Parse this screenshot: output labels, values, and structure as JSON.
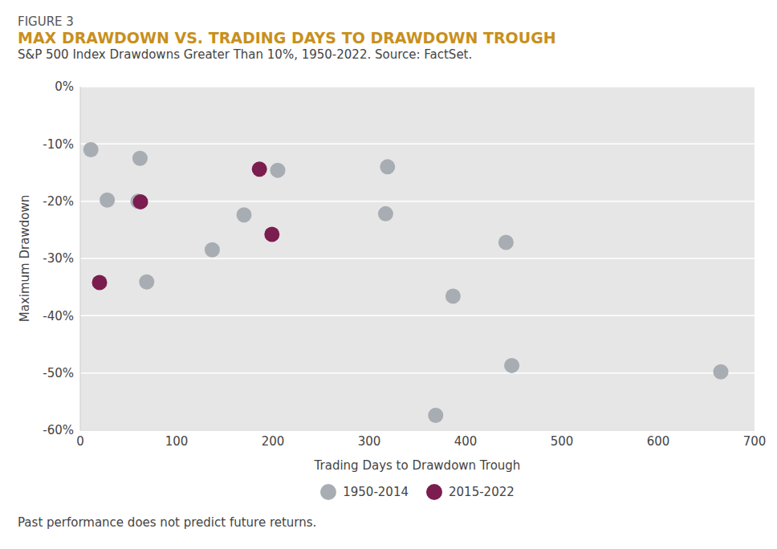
{
  "chart_data": {
    "type": "scatter",
    "figure_label": "FIGURE 3",
    "title": "MAX DRAWDOWN VS. TRADING DAYS TO DRAWDOWN TROUGH",
    "subtitle": "S&P 500 Index Drawdowns Greater Than 10%, 1950-2022. Source: FactSet.",
    "x_label": "Trading Days to Drawdown Trough",
    "y_label": "Maximum Drawdown",
    "footnote": "Past performance does not predict future returns.",
    "series": [
      {
        "name": "1950-2014",
        "color": "#a7adb2",
        "x": [
          11,
          62,
          28,
          60,
          69,
          137,
          170,
          205,
          319,
          317,
          442,
          387,
          369,
          448,
          665
        ],
        "values": [
          -11,
          -12.5,
          -19.8,
          -20,
          -34.1,
          -28.5,
          -22.4,
          -14.6,
          -14,
          -22.2,
          -27.2,
          -36.6,
          -57.4,
          -48.7,
          -49.8
        ]
      },
      {
        "name": "2015-2022",
        "color": "#7b1d4e",
        "x": [
          20,
          62.5,
          186,
          199
        ],
        "values": [
          -34.2,
          -20.1,
          -14.4,
          -25.8
        ]
      }
    ],
    "xlim": [
      0,
      700
    ],
    "xticks": [
      0,
      100,
      200,
      300,
      400,
      500,
      600,
      700
    ],
    "ylim": [
      -60,
      0
    ],
    "yticks": [
      {
        "value": -60,
        "label": "-60%"
      },
      {
        "value": -50,
        "label": "-50%"
      },
      {
        "value": -40,
        "label": "-40%"
      },
      {
        "value": -30,
        "label": "-30%"
      },
      {
        "value": -20,
        "label": "-20%"
      },
      {
        "value": -10,
        "label": "-10%"
      },
      {
        "value": 0,
        "label": "0%"
      }
    ],
    "grid": true,
    "marker": "circle"
  }
}
